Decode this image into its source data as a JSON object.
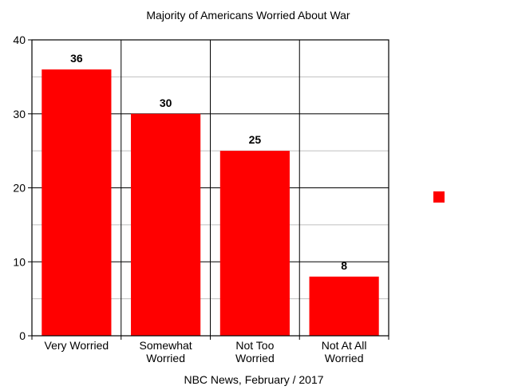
{
  "chart_data": {
    "type": "bar",
    "title": "Majority of Americans Worried About War",
    "xlabel": "NBC News, February / 2017",
    "ylabel": "",
    "categories": [
      [
        "Very Worried"
      ],
      [
        "Somewhat",
        "Worried"
      ],
      [
        "Not Too",
        "Worried"
      ],
      [
        "Not At All",
        "Worried"
      ]
    ],
    "values": [
      36,
      30,
      25,
      8
    ],
    "ylim": [
      0,
      40
    ],
    "yticks": [
      0,
      10,
      20,
      30,
      40
    ],
    "minor_gridlines": [
      5,
      15,
      25,
      35
    ],
    "data_labels": [
      "36",
      "30",
      "25",
      "8"
    ],
    "grid": true,
    "legend": {
      "placement": "right",
      "entries": [
        ""
      ]
    },
    "colors": {
      "bar": "#ff0000",
      "grid_major": "#000000",
      "grid_minor": "#bfbfbf",
      "frame": "#000000"
    }
  }
}
